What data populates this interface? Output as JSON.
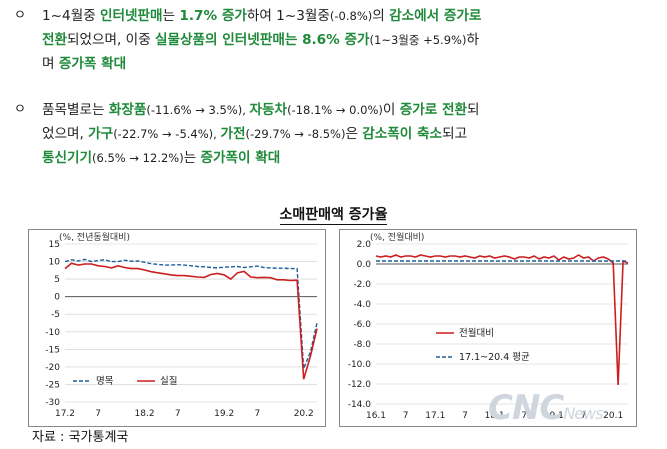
{
  "paragraphs": [
    {
      "bullet": "ㅇ",
      "lines": [
        [
          {
            "t": "1~4월중 ",
            "c": ""
          },
          {
            "t": "인터넷판매",
            "c": "hl"
          },
          {
            "t": "는 ",
            "c": ""
          },
          {
            "t": "1.7% 증가",
            "c": "hl"
          },
          {
            "t": "하여 1~3월중",
            "c": ""
          },
          {
            "t": "(-0.8%)",
            "c": "small"
          },
          {
            "t": "의 ",
            "c": ""
          },
          {
            "t": "감소에서 증가로",
            "c": "hl"
          }
        ],
        [
          {
            "t": "전환",
            "c": "hl"
          },
          {
            "t": "되었으며, 이중 ",
            "c": ""
          },
          {
            "t": "실물상품의 인터넷판매는 8.6% 증가",
            "c": "hl"
          },
          {
            "t": "(1~3월중 +5.9%)",
            "c": "small"
          },
          {
            "t": "하",
            "c": ""
          }
        ],
        [
          {
            "t": "며 ",
            "c": ""
          },
          {
            "t": "증가폭 확대",
            "c": "hl"
          }
        ]
      ]
    },
    {
      "bullet": "ㅇ",
      "lines": [
        [
          {
            "t": "품목별로는 ",
            "c": ""
          },
          {
            "t": "화장품",
            "c": "hl"
          },
          {
            "t": "(-11.6% → 3.5%), ",
            "c": "small"
          },
          {
            "t": "자동차",
            "c": "hl"
          },
          {
            "t": "(-18.1% → 0.0%)",
            "c": "small"
          },
          {
            "t": "이 ",
            "c": ""
          },
          {
            "t": "증가로 전환",
            "c": "hl"
          },
          {
            "t": "되",
            "c": ""
          }
        ],
        [
          {
            "t": "었으며, ",
            "c": ""
          },
          {
            "t": "가구",
            "c": "hl"
          },
          {
            "t": "(-22.7% → -5.4%), ",
            "c": "small"
          },
          {
            "t": "가전",
            "c": "hl"
          },
          {
            "t": "(-29.7% → -8.5%)",
            "c": "small"
          },
          {
            "t": "은 ",
            "c": ""
          },
          {
            "t": "감소폭이 축소",
            "c": "hl"
          },
          {
            "t": "되고",
            "c": ""
          }
        ],
        [
          {
            "t": "통신기기",
            "c": "hl"
          },
          {
            "t": "(6.5% → 12.2%)",
            "c": "small"
          },
          {
            "t": "는 ",
            "c": ""
          },
          {
            "t": "증가폭이 확대",
            "c": "hl"
          }
        ]
      ]
    }
  ],
  "chart_section_title": "소매판매액 증가율",
  "source_note": "자료 : 국가통계국",
  "watermark": {
    "main": "CNC",
    "sub": "News"
  },
  "colors": {
    "nominal": "#1f5f99",
    "real": "#cc1f1f",
    "avg": "#1f5f99",
    "mom": "#cc1f1f",
    "accent": "#1f8a3a"
  },
  "chart_data": [
    {
      "type": "line",
      "unit_label": "(%, 전년동월대비)",
      "ylim": [
        -30,
        15
      ],
      "yticks": [
        15,
        10,
        5,
        0,
        -5,
        -10,
        -15,
        -20,
        -25,
        -30
      ],
      "xlim": [
        0,
        38
      ],
      "xticks": [
        {
          "x": 0,
          "label": "17.2"
        },
        {
          "x": 5,
          "label": "7"
        },
        {
          "x": 12,
          "label": "18.2"
        },
        {
          "x": 17,
          "label": "7"
        },
        {
          "x": 24,
          "label": "19.2"
        },
        {
          "x": 29,
          "label": "7"
        },
        {
          "x": 36,
          "label": "20.2"
        }
      ],
      "series": [
        {
          "name": "명목",
          "style": "dashed",
          "x": [
            0,
            1,
            2,
            3,
            4,
            5,
            6,
            7,
            8,
            9,
            10,
            11,
            12,
            13,
            14,
            15,
            16,
            17,
            18,
            19,
            20,
            21,
            22,
            23,
            24,
            25,
            26,
            27,
            28,
            29,
            30,
            31,
            32,
            33,
            34,
            35,
            36,
            37,
            38
          ],
          "y": [
            10.0,
            10.5,
            10.2,
            10.6,
            10.0,
            10.3,
            10.5,
            10.0,
            10.0,
            10.4,
            10.1,
            10.2,
            9.8,
            9.4,
            9.2,
            9.0,
            9.0,
            9.1,
            9.0,
            8.8,
            8.6,
            8.5,
            8.3,
            8.2,
            8.4,
            8.5,
            8.6,
            8.3,
            8.5,
            8.7,
            8.3,
            8.2,
            8.1,
            8.1,
            8.0,
            8.0,
            -20.5,
            -15.8,
            -7.5
          ]
        },
        {
          "name": "실질",
          "style": "solid",
          "x": [
            0,
            1,
            2,
            3,
            4,
            5,
            6,
            7,
            8,
            9,
            10,
            11,
            12,
            13,
            14,
            15,
            16,
            17,
            18,
            19,
            20,
            21,
            22,
            23,
            24,
            25,
            26,
            27,
            28,
            29,
            30,
            31,
            32,
            33,
            34,
            35,
            36,
            37,
            38
          ],
          "y": [
            8.0,
            9.5,
            9.0,
            9.3,
            9.3,
            8.8,
            8.6,
            8.2,
            8.8,
            8.3,
            8.0,
            8.0,
            7.6,
            7.1,
            6.8,
            6.5,
            6.2,
            6.0,
            6.0,
            5.8,
            5.6,
            5.5,
            6.3,
            6.6,
            6.2,
            5.0,
            6.8,
            7.2,
            5.6,
            5.4,
            5.5,
            5.4,
            4.8,
            4.8,
            4.6,
            4.7,
            -23.5,
            -17.0,
            -9.1
          ]
        }
      ],
      "legend_position": "bottom-left"
    },
    {
      "type": "line",
      "unit_label": "(%, 전월대비)",
      "ylim": [
        -14,
        2
      ],
      "yticks": [
        2.0,
        0.0,
        -2.0,
        -4.0,
        -6.0,
        -8.0,
        -10.0,
        -12.0,
        -14.0
      ],
      "xlim": [
        0,
        51
      ],
      "xticks": [
        {
          "x": 0,
          "label": "16.1"
        },
        {
          "x": 6,
          "label": "7"
        },
        {
          "x": 12,
          "label": "17.1"
        },
        {
          "x": 18,
          "label": "7"
        },
        {
          "x": 24,
          "label": "18.1"
        },
        {
          "x": 30,
          "label": "7"
        },
        {
          "x": 36,
          "label": "19.1"
        },
        {
          "x": 42,
          "label": "7"
        },
        {
          "x": 48,
          "label": "20.1"
        }
      ],
      "series": [
        {
          "name": "전월대비",
          "style": "solid",
          "x": [
            0,
            1,
            2,
            3,
            4,
            5,
            6,
            7,
            8,
            9,
            10,
            11,
            12,
            13,
            14,
            15,
            16,
            17,
            18,
            19,
            20,
            21,
            22,
            23,
            24,
            25,
            26,
            27,
            28,
            29,
            30,
            31,
            32,
            33,
            34,
            35,
            36,
            37,
            38,
            39,
            40,
            41,
            42,
            43,
            44,
            45,
            46,
            47,
            48,
            49,
            50,
            51
          ],
          "y": [
            0.8,
            0.7,
            0.8,
            0.7,
            0.9,
            0.7,
            0.8,
            0.8,
            0.7,
            0.9,
            0.8,
            0.7,
            0.8,
            0.8,
            0.7,
            0.8,
            0.8,
            0.7,
            0.8,
            0.7,
            0.6,
            0.8,
            0.7,
            0.8,
            0.6,
            0.7,
            0.8,
            0.7,
            0.5,
            0.7,
            0.7,
            0.6,
            0.8,
            0.5,
            0.7,
            0.6,
            0.8,
            0.4,
            0.7,
            0.5,
            0.6,
            0.9,
            0.6,
            0.7,
            0.3,
            0.6,
            0.7,
            0.5,
            0.1,
            -12.1,
            0.3,
            0.1
          ]
        },
        {
          "name": "17.1~20.4 평균",
          "style": "dashed",
          "x": [
            0,
            51
          ],
          "y": [
            0.3,
            0.3
          ]
        }
      ],
      "legend_position": "bottom-left"
    }
  ]
}
